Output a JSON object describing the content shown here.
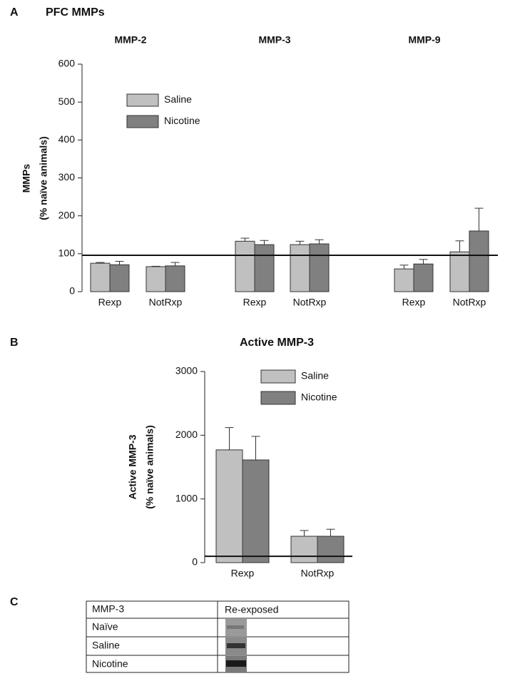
{
  "chart_data": [
    {
      "type": "bar",
      "panel_label": "A",
      "title": "PFC MMPs",
      "ylabel": [
        "MMPs",
        "(% naïve animals)"
      ],
      "groups": [
        "MMP-2",
        "MMP-3",
        "MMP-9"
      ],
      "categories": [
        "Rexp",
        "NotRxp",
        "Rexp",
        "NotRxp",
        "Rexp",
        "NotRxp"
      ],
      "series": [
        {
          "name": "Saline",
          "color": "#c0c0c0",
          "values": [
            75,
            66,
            133,
            124,
            60,
            105
          ],
          "errors": [
            2,
            1,
            8,
            9,
            10,
            29
          ]
        },
        {
          "name": "Nicotine",
          "color": "#808080",
          "values": [
            71,
            68,
            124,
            126,
            73,
            160
          ],
          "errors": [
            9,
            9,
            11,
            11,
            12,
            60
          ]
        }
      ],
      "ylim": [
        0,
        600
      ],
      "yticks": [
        0,
        100,
        200,
        300,
        400,
        500,
        600
      ],
      "reference_line": 96
    },
    {
      "type": "bar",
      "panel_label": "B",
      "title": "Active MMP-3",
      "ylabel": [
        "Active MMP-3",
        "(% naïve animals)"
      ],
      "categories": [
        "Rexp",
        "NotRxp"
      ],
      "series": [
        {
          "name": "Saline",
          "color": "#c0c0c0",
          "values": [
            1770,
            414
          ],
          "errors": [
            350,
            90
          ]
        },
        {
          "name": "Nicotine",
          "color": "#808080",
          "values": [
            1612,
            414
          ],
          "errors": [
            370,
            110
          ]
        }
      ],
      "ylim": [
        0,
        3000
      ],
      "yticks": [
        0,
        1000,
        2000,
        3000
      ],
      "reference_line": 100
    }
  ],
  "table": {
    "panel_label": "C",
    "header": [
      "MMP-3",
      "Re-exposed"
    ],
    "rows": [
      "Naïve",
      "Saline",
      "Nicotine"
    ]
  }
}
